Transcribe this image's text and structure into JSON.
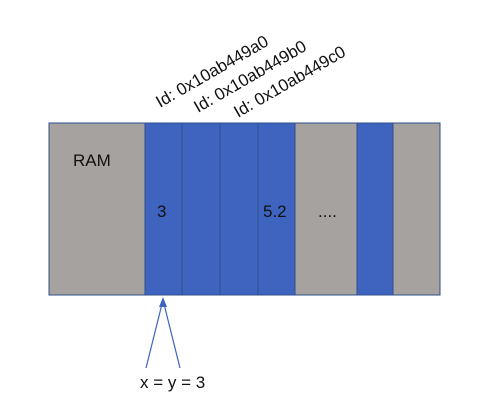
{
  "diagram": {
    "ram_label": "RAM",
    "cells": [
      {
        "kind": "gray",
        "value": ""
      },
      {
        "kind": "blue",
        "value": "3"
      },
      {
        "kind": "blue",
        "value": ""
      },
      {
        "kind": "blue",
        "value": ""
      },
      {
        "kind": "blue",
        "value": "5.2"
      },
      {
        "kind": "gray",
        "value": "...."
      },
      {
        "kind": "blue",
        "value": ""
      },
      {
        "kind": "gray",
        "value": ""
      }
    ],
    "id_labels": [
      "Id: 0x10ab449a0",
      "Id: 0x10ab449b0",
      "Id: 0x10ab449c0"
    ],
    "assignment_label": "x = y = 3",
    "colors": {
      "gray": "#a5a2a0",
      "blue": "#3f64c0",
      "border": "#2f4f8a",
      "arrow": "#3f64c0"
    }
  }
}
